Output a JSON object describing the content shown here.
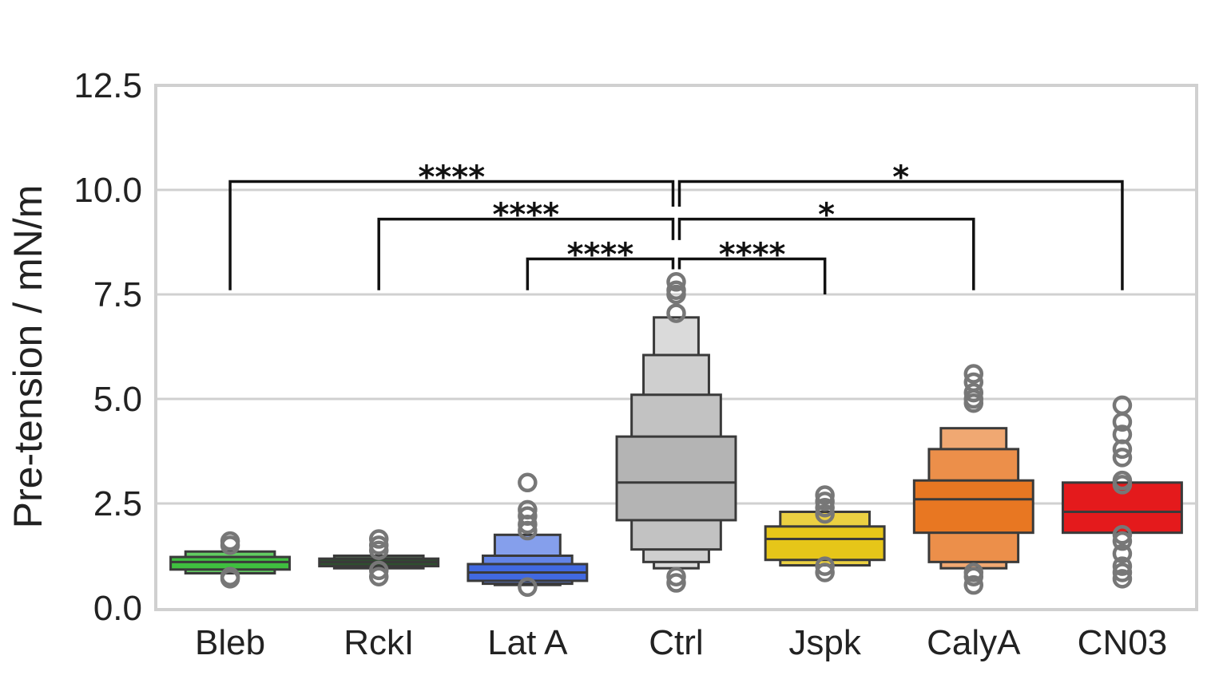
{
  "chart_data": {
    "type": "boxen",
    "title": "",
    "xlabel": "",
    "ylabel": "Pre-tension  /  mN/m",
    "ylim": [
      0,
      12.5
    ],
    "yticks": [
      "0.0",
      "2.5",
      "5.0",
      "7.5",
      "10.0",
      "12.5"
    ],
    "grid": "horizontal",
    "categories": [
      "Bleb",
      "RckI",
      "Lat A",
      "Ctrl",
      "Jspk",
      "CalyA",
      "CN03"
    ],
    "series": [
      {
        "category": "Bleb",
        "color": "#3fbf3f",
        "median": 1.1,
        "levels": [
          [
            0.92,
            1.22
          ],
          [
            0.83,
            1.35
          ]
        ],
        "outliers": [
          1.6,
          1.5,
          0.75,
          0.7
        ]
      },
      {
        "category": "RckI",
        "color": "#2f4f2f",
        "median": 1.1,
        "levels": [
          [
            1.0,
            1.18
          ],
          [
            0.95,
            1.25
          ]
        ],
        "outliers": [
          1.65,
          1.5,
          1.38,
          0.9,
          0.75
        ]
      },
      {
        "category": "Lat A",
        "color": "#4169e1",
        "median": 0.85,
        "levels": [
          [
            0.65,
            1.05
          ],
          [
            0.58,
            1.25
          ],
          [
            0.55,
            1.75
          ]
        ],
        "outliers": [
          3.0,
          2.35,
          2.2,
          2.0,
          1.85,
          0.5
        ]
      },
      {
        "category": "Ctrl",
        "color": "#b4b4b4",
        "median": 3.0,
        "levels": [
          [
            2.1,
            4.1
          ],
          [
            1.4,
            5.1
          ],
          [
            1.1,
            6.05
          ],
          [
            0.95,
            6.95
          ]
        ],
        "outliers": [
          7.8,
          7.6,
          7.5,
          7.05,
          0.75,
          0.6
        ]
      },
      {
        "category": "Jspk",
        "color": "#e6c619",
        "median": 1.65,
        "levels": [
          [
            1.15,
            1.95
          ],
          [
            1.02,
            2.3
          ]
        ],
        "outliers": [
          2.7,
          2.55,
          2.4,
          2.25,
          1.0,
          0.85
        ]
      },
      {
        "category": "CalyA",
        "color": "#e87722",
        "median": 2.6,
        "levels": [
          [
            1.8,
            3.05
          ],
          [
            1.1,
            3.8
          ],
          [
            0.95,
            4.3
          ]
        ],
        "outliers": [
          5.6,
          5.4,
          5.15,
          5.0,
          4.9,
          0.85,
          0.75,
          0.55
        ]
      },
      {
        "category": "CN03",
        "color": "#e41a1c",
        "median": 2.3,
        "levels": [
          [
            1.8,
            3.0
          ]
        ],
        "outliers": [
          4.85,
          4.45,
          4.15,
          3.8,
          3.6,
          3.05,
          2.95,
          1.75,
          1.6,
          1.3,
          1.0,
          0.85,
          0.7
        ]
      }
    ],
    "significance": [
      {
        "from": "Bleb",
        "to": "Ctrl",
        "label": "****",
        "y": 10.2,
        "y_from": 7.6,
        "y_to": 9.6
      },
      {
        "from": "RckI",
        "to": "Ctrl",
        "label": "****",
        "y": 9.3,
        "y_from": 7.6,
        "y_to": 8.8
      },
      {
        "from": "Lat A",
        "to": "Ctrl",
        "label": "****",
        "y": 8.35,
        "y_from": 7.6,
        "y_to": 8.1
      },
      {
        "from": "Ctrl",
        "to": "Jspk",
        "label": "****",
        "y": 8.35,
        "y_from": 8.1,
        "y_to": 7.5
      },
      {
        "from": "Ctrl",
        "to": "CalyA",
        "label": "*",
        "y": 9.3,
        "y_from": 8.8,
        "y_to": 7.6
      },
      {
        "from": "Ctrl",
        "to": "CN03",
        "label": "*",
        "y": 10.2,
        "y_from": 9.6,
        "y_to": 7.6
      }
    ]
  }
}
